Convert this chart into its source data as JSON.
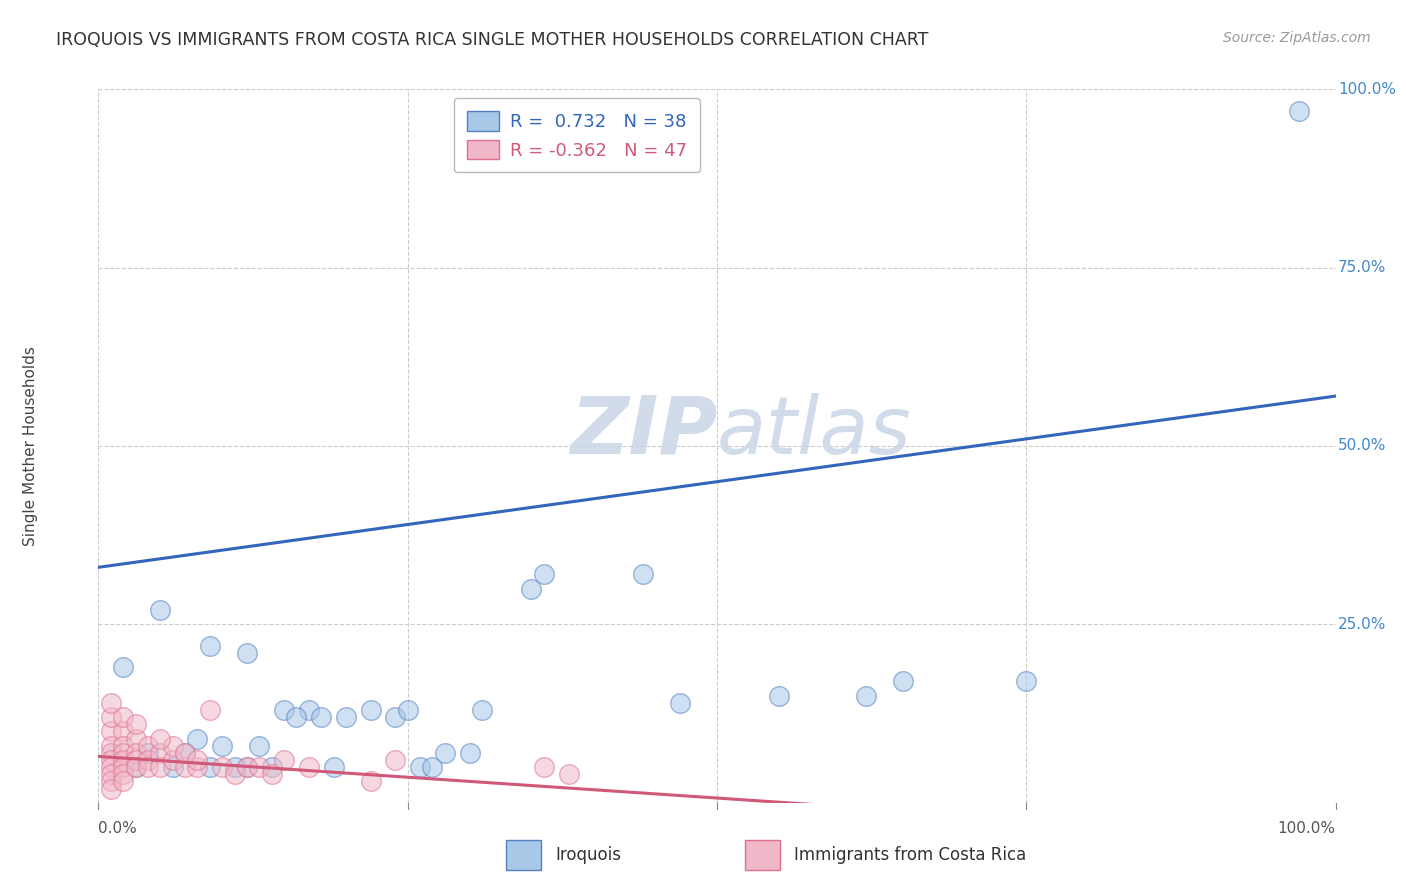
{
  "title": "IROQUOIS VS IMMIGRANTS FROM COSTA RICA SINGLE MOTHER HOUSEHOLDS CORRELATION CHART",
  "source": "Source: ZipAtlas.com",
  "ylabel": "Single Mother Households",
  "watermark": "ZIPatlas",
  "xlim": [
    0,
    1
  ],
  "ylim": [
    0,
    1
  ],
  "yticks": [
    0,
    0.25,
    0.5,
    0.75,
    1.0
  ],
  "ytick_labels": [
    "",
    "25.0%",
    "50.0%",
    "75.0%",
    "100.0%"
  ],
  "xtick_positions": [
    0,
    0.25,
    0.5,
    0.75,
    1.0
  ],
  "legend_r1": "R =  0.732   N = 38",
  "legend_r2": "R = -0.362   N = 47",
  "iroquois_color": "#a8c8e8",
  "iroquois_edge_color": "#5580c0",
  "iroquois_line_color": "#3366bb",
  "costa_rica_color": "#f0b8c8",
  "costa_rica_edge_color": "#e07090",
  "costa_rica_line_color": "#d05878",
  "scatter_alpha": 0.55,
  "iroquois_scatter": [
    [
      0.97,
      0.97
    ],
    [
      0.02,
      0.19
    ],
    [
      0.05,
      0.27
    ],
    [
      0.09,
      0.22
    ],
    [
      0.12,
      0.21
    ],
    [
      0.04,
      0.07
    ],
    [
      0.07,
      0.07
    ],
    [
      0.08,
      0.09
    ],
    [
      0.1,
      0.08
    ],
    [
      0.13,
      0.08
    ],
    [
      0.12,
      0.05
    ],
    [
      0.15,
      0.13
    ],
    [
      0.17,
      0.13
    ],
    [
      0.16,
      0.12
    ],
    [
      0.18,
      0.12
    ],
    [
      0.2,
      0.12
    ],
    [
      0.22,
      0.13
    ],
    [
      0.24,
      0.12
    ],
    [
      0.25,
      0.13
    ],
    [
      0.26,
      0.05
    ],
    [
      0.27,
      0.05
    ],
    [
      0.3,
      0.07
    ],
    [
      0.31,
      0.13
    ],
    [
      0.35,
      0.3
    ],
    [
      0.44,
      0.32
    ],
    [
      0.47,
      0.14
    ],
    [
      0.55,
      0.15
    ],
    [
      0.62,
      0.15
    ],
    [
      0.65,
      0.17
    ],
    [
      0.03,
      0.05
    ],
    [
      0.06,
      0.05
    ],
    [
      0.09,
      0.05
    ],
    [
      0.11,
      0.05
    ],
    [
      0.14,
      0.05
    ],
    [
      0.19,
      0.05
    ],
    [
      0.28,
      0.07
    ],
    [
      0.36,
      0.32
    ],
    [
      0.75,
      0.17
    ]
  ],
  "costa_rica_scatter": [
    [
      0.01,
      0.1
    ],
    [
      0.01,
      0.08
    ],
    [
      0.01,
      0.07
    ],
    [
      0.01,
      0.06
    ],
    [
      0.01,
      0.05
    ],
    [
      0.01,
      0.04
    ],
    [
      0.01,
      0.03
    ],
    [
      0.01,
      0.02
    ],
    [
      0.02,
      0.1
    ],
    [
      0.02,
      0.08
    ],
    [
      0.02,
      0.07
    ],
    [
      0.02,
      0.06
    ],
    [
      0.02,
      0.05
    ],
    [
      0.02,
      0.04
    ],
    [
      0.02,
      0.03
    ],
    [
      0.03,
      0.09
    ],
    [
      0.03,
      0.07
    ],
    [
      0.03,
      0.06
    ],
    [
      0.03,
      0.05
    ],
    [
      0.04,
      0.08
    ],
    [
      0.04,
      0.06
    ],
    [
      0.04,
      0.05
    ],
    [
      0.05,
      0.07
    ],
    [
      0.05,
      0.05
    ],
    [
      0.06,
      0.06
    ],
    [
      0.06,
      0.08
    ],
    [
      0.07,
      0.05
    ],
    [
      0.08,
      0.05
    ],
    [
      0.09,
      0.13
    ],
    [
      0.1,
      0.05
    ],
    [
      0.11,
      0.04
    ],
    [
      0.12,
      0.05
    ],
    [
      0.13,
      0.05
    ],
    [
      0.14,
      0.04
    ],
    [
      0.17,
      0.05
    ],
    [
      0.22,
      0.03
    ],
    [
      0.24,
      0.06
    ],
    [
      0.36,
      0.05
    ],
    [
      0.38,
      0.04
    ],
    [
      0.01,
      0.12
    ],
    [
      0.01,
      0.14
    ],
    [
      0.02,
      0.12
    ],
    [
      0.03,
      0.11
    ],
    [
      0.05,
      0.09
    ],
    [
      0.07,
      0.07
    ],
    [
      0.08,
      0.06
    ],
    [
      0.15,
      0.06
    ]
  ],
  "blue_line_x": [
    0.0,
    1.0
  ],
  "blue_line_y": [
    0.33,
    0.57
  ],
  "pink_line_x": [
    0.0,
    0.6
  ],
  "pink_line_y": [
    0.065,
    -0.005
  ],
  "background_color": "#ffffff",
  "grid_color": "#cccccc",
  "title_fontsize": 12.5,
  "axis_label_fontsize": 11,
  "tick_fontsize": 11,
  "source_fontsize": 10,
  "legend_fontsize": 13
}
